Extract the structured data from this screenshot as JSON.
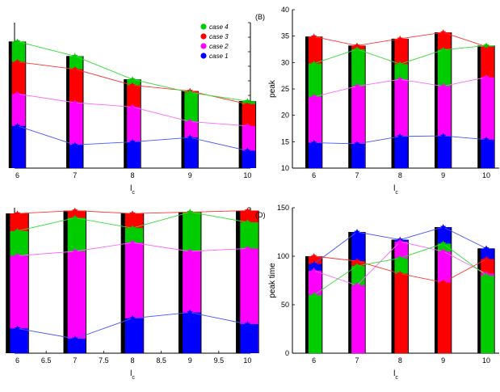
{
  "colors": {
    "case1": "#0000ff",
    "case2": "#ff00ff",
    "case3": "#ff0000",
    "case4": "#00cc00",
    "base": "#000000",
    "line_case1": "#4455ff",
    "line_case2": "#ff66ff",
    "line_case3": "#ff3333",
    "line_case4": "#33dd33"
  },
  "legend": {
    "placement": "top-right of panel A",
    "entries": [
      "case 4",
      "case 3",
      "case 2",
      "case 1"
    ]
  },
  "chart_data": [
    {
      "id": "A",
      "type": "bar",
      "panel_label": "",
      "xlabel": "l_c",
      "ylabel": "",
      "x": [
        6,
        7,
        8,
        9,
        10
      ],
      "xticks": [
        "6",
        "7",
        "8",
        "9",
        "10"
      ],
      "ylim": [
        0,
        1
      ],
      "yticks": [],
      "bar_width": 0.3,
      "series": [
        {
          "name": "case 1",
          "values": [
            0.29,
            0.16,
            0.18,
            0.21,
            0.12
          ]
        },
        {
          "name": "case 2",
          "values": [
            0.51,
            0.45,
            0.42,
            0.32,
            0.29
          ]
        },
        {
          "name": "case 3",
          "values": [
            0.73,
            0.68,
            0.57,
            0.53,
            0.44
          ]
        },
        {
          "name": "case 4",
          "values": [
            0.87,
            0.77,
            0.61,
            0.52,
            0.46
          ]
        }
      ]
    },
    {
      "id": "B",
      "type": "bar",
      "panel_label": "(B)",
      "xlabel": "l_c",
      "ylabel": "peak",
      "x": [
        6,
        7,
        8,
        9,
        10
      ],
      "xticks": [
        "6",
        "7",
        "8",
        "9",
        "10"
      ],
      "ylim": [
        10,
        40
      ],
      "yticks": [
        "10",
        "15",
        "20",
        "25",
        "30",
        "35",
        "40"
      ],
      "bar_width": 0.4,
      "series": [
        {
          "name": "case 1",
          "values": [
            14.8,
            14.6,
            16.0,
            16.1,
            15.4
          ]
        },
        {
          "name": "case 2",
          "values": [
            23.5,
            25.5,
            26.8,
            25.5,
            27.2
          ]
        },
        {
          "name": "case 3",
          "values": [
            34.9,
            33.2,
            34.5,
            35.7,
            33.0
          ]
        },
        {
          "name": "case 4",
          "values": [
            29.8,
            32.5,
            29.7,
            32.4,
            33.2
          ]
        }
      ]
    },
    {
      "id": "C",
      "type": "bar",
      "panel_label": "",
      "xlabel": "l_c",
      "ylabel": "",
      "x": [
        6,
        7,
        8,
        9,
        10
      ],
      "xticks": [
        "6",
        "6.5",
        "7",
        "7.5",
        "8",
        "8.5",
        "9",
        "9.5",
        "10"
      ],
      "xtick_values": [
        6,
        6.5,
        7,
        7.5,
        8,
        8.5,
        9,
        9.5,
        10
      ],
      "ylim": [
        0,
        1
      ],
      "yticks": [],
      "bar_width": 0.4,
      "series": [
        {
          "name": "case 1",
          "values": [
            0.17,
            0.1,
            0.24,
            0.28,
            0.2
          ]
        },
        {
          "name": "case 2",
          "values": [
            0.67,
            0.7,
            0.76,
            0.7,
            0.72
          ]
        },
        {
          "name": "case 3",
          "values": [
            0.96,
            0.98,
            0.96,
            0.97,
            0.98
          ]
        },
        {
          "name": "case 4",
          "values": [
            0.84,
            0.93,
            0.86,
            0.97,
            0.9
          ]
        }
      ]
    },
    {
      "id": "D",
      "type": "bar",
      "panel_label": "(D)",
      "xlabel": "l_c",
      "ylabel": "peak time",
      "x": [
        6,
        7,
        8,
        9,
        10
      ],
      "xticks": [
        "6",
        "7",
        "8",
        "9",
        "10"
      ],
      "ylim": [
        0,
        150
      ],
      "yticks": [
        "0",
        "50",
        "100",
        "150"
      ],
      "bar_width": 0.4,
      "series": [
        {
          "name": "case 1",
          "values": [
            92,
            125,
            117,
            130,
            108
          ]
        },
        {
          "name": "case 2",
          "values": [
            85,
            70,
            115,
            105,
            82
          ]
        },
        {
          "name": "case 3",
          "values": [
            100,
            95,
            82,
            73,
            97
          ]
        },
        {
          "name": "case 4",
          "values": [
            60,
            90,
            98,
            113,
            80
          ]
        }
      ]
    }
  ]
}
